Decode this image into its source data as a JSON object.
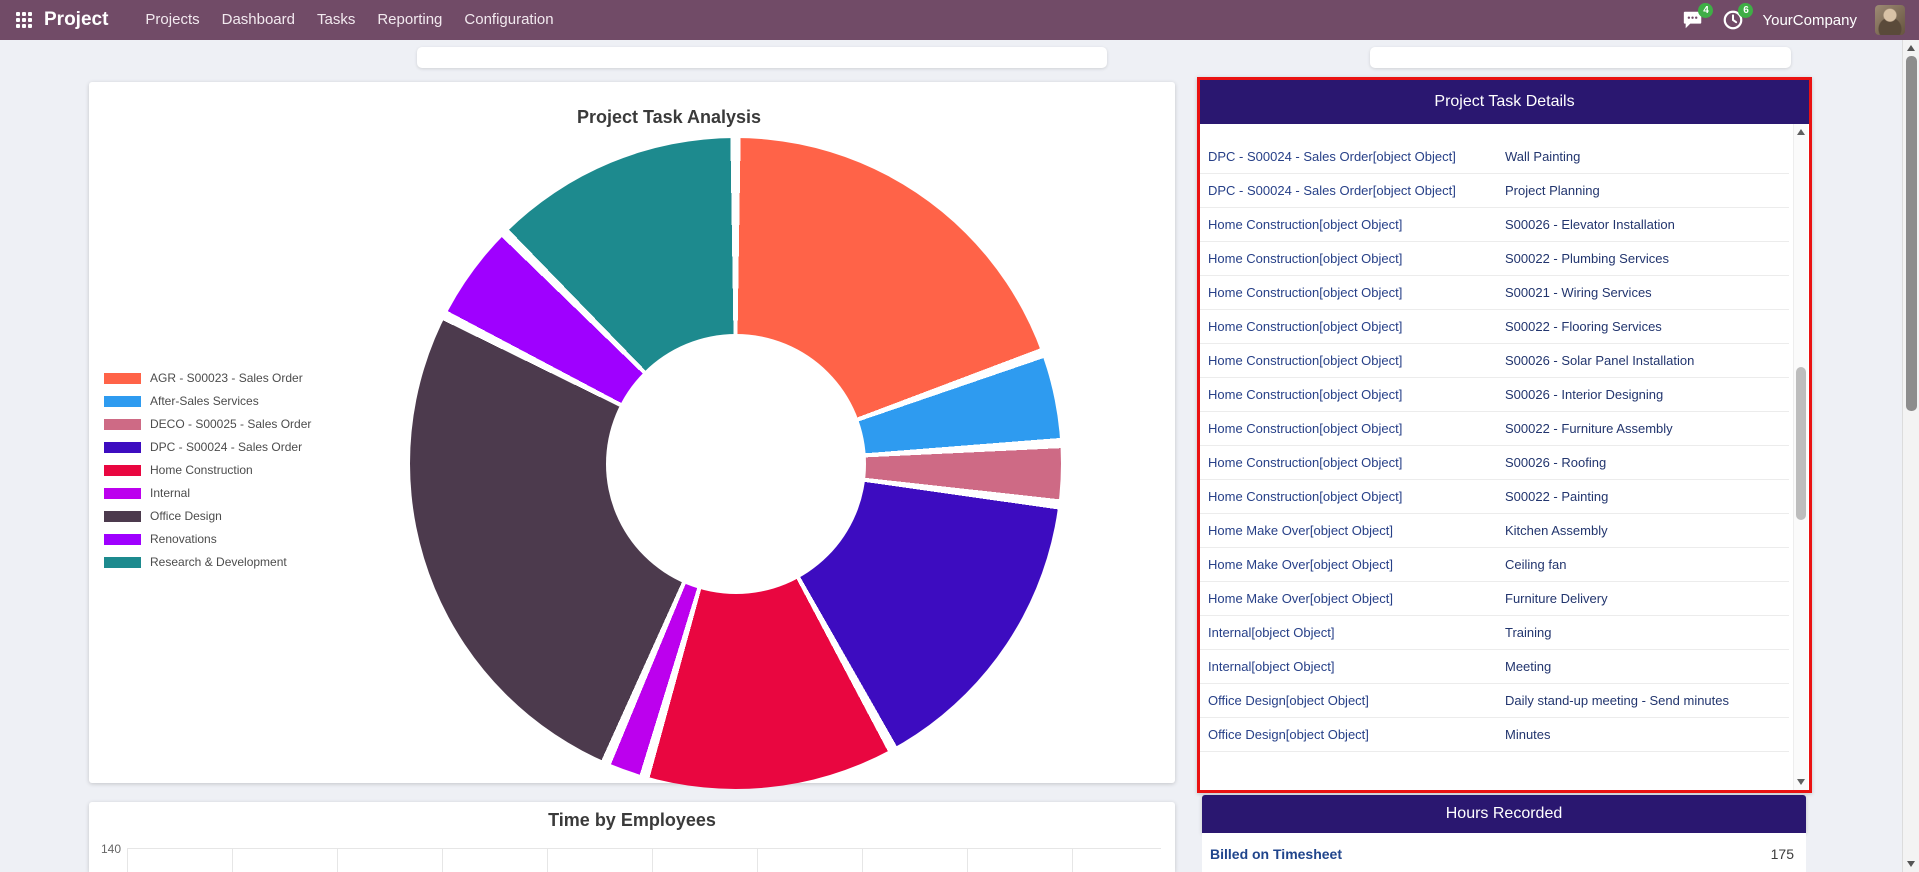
{
  "navbar": {
    "app_name": "Project",
    "menu_items": [
      "Projects",
      "Dashboard",
      "Tasks",
      "Reporting",
      "Configuration"
    ],
    "messages_badge": "4",
    "activities_badge": "6",
    "company_name": "YourCompany",
    "bar_color": "#714B67",
    "badge_color": "#3fae46"
  },
  "chart_data": [
    {
      "type": "pie",
      "title": "Project Task Analysis",
      "legend_position": "left",
      "hole": true,
      "labels": [
        "AGR - S00023 - Sales Order",
        "After-Sales Services",
        "DECO - S00025 - Sales Order",
        "DPC - S00024 - Sales Order",
        "Home Construction",
        "Internal",
        "Office Design",
        "Renovations",
        "Research & Development"
      ],
      "values": [
        19.5,
        4.5,
        3,
        15,
        12.5,
        2,
        26,
        5,
        12.5
      ],
      "values_unit": "percent_estimated_from_arc_angles",
      "colors": [
        "#FF6348",
        "#2E9BF0",
        "#CE6A85",
        "#3D0CC0",
        "#E90640",
        "#BC00EE",
        "#4C3A4D",
        "#9F00FF",
        "#1D8A8E"
      ]
    },
    {
      "type": "bar",
      "title": "Time by Employees",
      "ylim": [
        0,
        140
      ],
      "visible_tick_labels": [
        "140"
      ],
      "note": "chart area cut off at bottom edge of viewport; only top gridline visible"
    }
  ],
  "details_card": {
    "title": "Project Task Details",
    "header_color": "#2a1770",
    "highlight_border_color": "#ea1212",
    "rows": [
      {
        "project": "DPC - S00024 - Sales Order[object Object]",
        "task": "Wall Painting"
      },
      {
        "project": "DPC - S00024 - Sales Order[object Object]",
        "task": "Project Planning"
      },
      {
        "project": "Home Construction[object Object]",
        "task": "S00026 - Elevator Installation"
      },
      {
        "project": "Home Construction[object Object]",
        "task": "S00022 - Plumbing Services"
      },
      {
        "project": "Home Construction[object Object]",
        "task": "S00021 - Wiring Services"
      },
      {
        "project": "Home Construction[object Object]",
        "task": "S00022 - Flooring Services"
      },
      {
        "project": "Home Construction[object Object]",
        "task": "S00026 - Solar Panel Installation"
      },
      {
        "project": "Home Construction[object Object]",
        "task": "S00026 - Interior Designing"
      },
      {
        "project": "Home Construction[object Object]",
        "task": "S00022 - Furniture Assembly"
      },
      {
        "project": "Home Construction[object Object]",
        "task": "S00026 - Roofing"
      },
      {
        "project": "Home Construction[object Object]",
        "task": "S00022 - Painting"
      },
      {
        "project": "Home Make Over[object Object]",
        "task": "Kitchen Assembly"
      },
      {
        "project": "Home Make Over[object Object]",
        "task": "Ceiling fan"
      },
      {
        "project": "Home Make Over[object Object]",
        "task": "Furniture Delivery"
      },
      {
        "project": "Internal[object Object]",
        "task": "Training"
      },
      {
        "project": "Internal[object Object]",
        "task": "Meeting"
      },
      {
        "project": "Office Design[object Object]",
        "task": "Daily stand-up meeting - Send minutes"
      },
      {
        "project": "Office Design[object Object]",
        "task": "Minutes"
      }
    ]
  },
  "hours_card": {
    "title": "Hours Recorded",
    "rows": [
      {
        "label": "Billed on Timesheet",
        "value": "175"
      }
    ]
  }
}
